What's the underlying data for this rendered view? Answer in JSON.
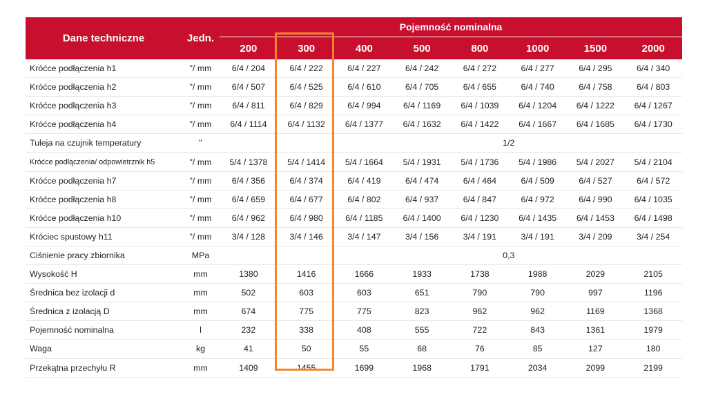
{
  "header": {
    "dane": "Dane techniczne",
    "jedn": "Jedn.",
    "group": "Pojemność nominalna",
    "capacities": [
      "200",
      "300",
      "400",
      "500",
      "800",
      "1000",
      "1500",
      "2000"
    ]
  },
  "highlight_color": "#f5872b",
  "header_color": "#c8102e",
  "rows": [
    {
      "name": "Króćce podłączenia h1",
      "unit": "\"/ mm",
      "values": [
        "6/4 / 204",
        "6/4 / 222",
        "6/4 / 227",
        "6/4 / 242",
        "6/4 / 272",
        "6/4 / 277",
        "6/4 / 295",
        "6/4 / 340"
      ]
    },
    {
      "name": "Króćce podłączenia h2",
      "unit": "\"/ mm",
      "values": [
        "6/4 / 507",
        "6/4 / 525",
        "6/4 / 610",
        "6/4 / 705",
        "6/4 / 655",
        "6/4 / 740",
        "6/4 / 758",
        "6/4 / 803"
      ]
    },
    {
      "name": "Króćce podłączenia h3",
      "unit": "\"/ mm",
      "values": [
        "6/4 / 811",
        "6/4 / 829",
        "6/4 / 994",
        "6/4 / 1169",
        "6/4 / 1039",
        "6/4 / 1204",
        "6/4 / 1222",
        "6/4 / 1267"
      ]
    },
    {
      "name": "Króćce podłączenia h4",
      "unit": "\"/ mm",
      "values": [
        "6/4 / 1114",
        "6/4 / 1132",
        "6/4 / 1377",
        "6/4 / 1632",
        "6/4 / 1422",
        "6/4 / 1667",
        "6/4 / 1685",
        "6/4 / 1730"
      ]
    },
    {
      "name": "Tuleja na czujnik temperatury",
      "unit": "\"",
      "left": [
        "",
        ""
      ],
      "span_value": "1/2"
    },
    {
      "name": "Króćce podłączenia/ odpowietrznik h5",
      "unit": "\"/ mm",
      "small": true,
      "values": [
        "5/4 / 1378",
        "5/4 / 1414",
        "5/4 / 1664",
        "5/4 / 1931",
        "5/4 / 1736",
        "5/4 / 1986",
        "5/4 / 2027",
        "5/4 / 2104"
      ]
    },
    {
      "name": "Króćce podłączenia h7",
      "unit": "\"/ mm",
      "values": [
        "6/4 / 356",
        "6/4 / 374",
        "6/4 / 419",
        "6/4 / 474",
        "6/4 / 464",
        "6/4 / 509",
        "6/4 / 527",
        "6/4 / 572"
      ]
    },
    {
      "name": "Króćce podłączenia h8",
      "unit": "\"/ mm",
      "values": [
        "6/4 / 659",
        "6/4 / 677",
        "6/4 / 802",
        "6/4 / 937",
        "6/4 / 847",
        "6/4 / 972",
        "6/4 / 990",
        "6/4 / 1035"
      ]
    },
    {
      "name": "Króćce podłączenia h10",
      "unit": "\"/ mm",
      "values": [
        "6/4 / 962",
        "6/4 / 980",
        "6/4 / 1185",
        "6/4 / 1400",
        "6/4 / 1230",
        "6/4 / 1435",
        "6/4 / 1453",
        "6/4 / 1498"
      ]
    },
    {
      "name": "Króciec spustowy h11",
      "unit": "\"/ mm",
      "values": [
        "3/4 / 128",
        "3/4 / 146",
        "3/4 / 147",
        "3/4 / 156",
        "3/4 / 191",
        "3/4 / 191",
        "3/4 / 209",
        "3/4 / 254"
      ]
    },
    {
      "name": "Ciśnienie pracy zbiornika",
      "unit": "MPa",
      "left": [
        "",
        ""
      ],
      "span_value": "0,3"
    },
    {
      "name": "Wysokość H",
      "unit": "mm",
      "values": [
        "1380",
        "1416",
        "1666",
        "1933",
        "1738",
        "1988",
        "2029",
        "2105"
      ]
    },
    {
      "name": "Średnica bez izolacji d",
      "unit": "mm",
      "values": [
        "502",
        "603",
        "603",
        "651",
        "790",
        "790",
        "997",
        "1196"
      ]
    },
    {
      "name": "Średnica z izolacją D",
      "unit": "mm",
      "values": [
        "674",
        "775",
        "775",
        "823",
        "962",
        "962",
        "1169",
        "1368"
      ]
    },
    {
      "name": "Pojemność nominalna",
      "unit": "l",
      "values": [
        "232",
        "338",
        "408",
        "555",
        "722",
        "843",
        "1361",
        "1979"
      ]
    },
    {
      "name": "Waga",
      "unit": "kg",
      "values": [
        "41",
        "50",
        "55",
        "68",
        "76",
        "85",
        "127",
        "180"
      ]
    },
    {
      "name": "Przekątna przechyłu R",
      "unit": "mm",
      "values": [
        "1409",
        "1455",
        "1699",
        "1968",
        "1791",
        "2034",
        "2099",
        "2199"
      ]
    }
  ]
}
